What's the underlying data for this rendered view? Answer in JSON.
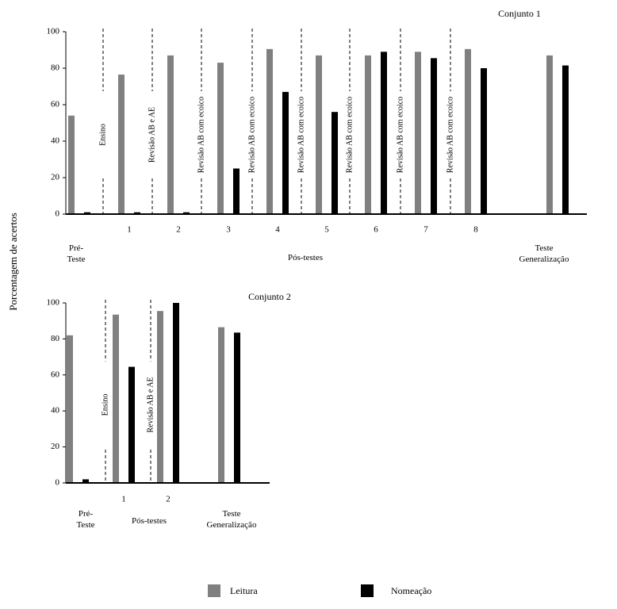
{
  "ylabel": "Porcentagem de acertos",
  "legend_position": "bottom",
  "chart_data": [
    {
      "type": "bar",
      "title": "Conjunto 1",
      "categories": [
        null,
        "1",
        "2",
        "3",
        "4",
        "5",
        "6",
        "7",
        "8",
        null
      ],
      "groups": [
        "Pré-\nTeste",
        "Pós-testes",
        "Teste\nGeneralização"
      ],
      "phases": [
        "Ensino",
        "Revisão AB e AE",
        "Revisão AB com ecoico",
        "Revisão AB com ecoico",
        "Revisão AB com ecoico",
        "Revisão AB com ecoico",
        "Revisão AB com ecoico",
        "Revisão AB com ecoico"
      ],
      "ylim": [
        0,
        100
      ],
      "yticks": [
        0,
        20,
        40,
        60,
        80,
        100
      ],
      "series": [
        {
          "name": "Leitura",
          "color": "#808080",
          "values": [
            54,
            76.5,
            87,
            83,
            90.5,
            87,
            87,
            89,
            90.5,
            87
          ]
        },
        {
          "name": "Nomeação",
          "color": "#000000",
          "values": [
            1,
            1,
            1,
            25,
            67,
            56,
            89,
            85.5,
            80,
            81.5
          ]
        }
      ]
    },
    {
      "type": "bar",
      "title": "Conjunto 2",
      "categories": [
        null,
        "1",
        "2",
        null
      ],
      "groups": [
        "Pré-\nTeste",
        "Pós-testes",
        "Teste\nGeneralização"
      ],
      "phases": [
        "Ensino",
        "Revisão AB e AE"
      ],
      "ylim": [
        0,
        100
      ],
      "yticks": [
        0,
        20,
        40,
        60,
        80,
        100
      ],
      "series": [
        {
          "color": "#808080",
          "values": [
            82,
            93.5,
            95.5,
            86.5
          ]
        },
        {
          "color": "#000000",
          "values": [
            2,
            64.5,
            100,
            83.5
          ]
        }
      ]
    }
  ]
}
